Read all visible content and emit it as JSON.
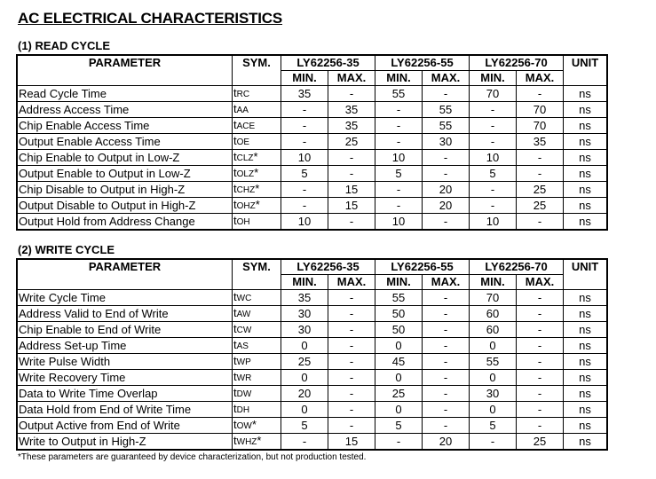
{
  "title": "AC ELECTRICAL CHARACTERISTICS",
  "headers": {
    "parameter": "PARAMETER",
    "sym": "SYM.",
    "parts": [
      "LY62256-35",
      "LY62256-55",
      "LY62256-70"
    ],
    "min": "MIN.",
    "max": "MAX.",
    "unit": "UNIT"
  },
  "read": {
    "heading": "(1) READ CYCLE",
    "rows": [
      [
        "Read Cycle Time",
        "RC",
        "",
        "35",
        "-",
        "55",
        "-",
        "70",
        "-",
        "ns"
      ],
      [
        "Address Access Time",
        "AA",
        "",
        "-",
        "35",
        "-",
        "55",
        "-",
        "70",
        "ns"
      ],
      [
        "Chip Enable Access Time",
        "ACE",
        "",
        "-",
        "35",
        "-",
        "55",
        "-",
        "70",
        "ns"
      ],
      [
        "Output Enable Access Time",
        "OE",
        "",
        "-",
        "25",
        "-",
        "30",
        "-",
        "35",
        "ns"
      ],
      [
        "Chip Enable to Output in Low-Z",
        "CLZ",
        "*",
        "10",
        "-",
        "10",
        "-",
        "10",
        "-",
        "ns"
      ],
      [
        "Output Enable to Output in Low-Z",
        "OLZ",
        "*",
        "5",
        "-",
        "5",
        "-",
        "5",
        "-",
        "ns"
      ],
      [
        "Chip Disable to Output in High-Z",
        "CHZ",
        "*",
        "-",
        "15",
        "-",
        "20",
        "-",
        "25",
        "ns"
      ],
      [
        "Output Disable to Output in High-Z",
        "OHZ",
        "*",
        "-",
        "15",
        "-",
        "20",
        "-",
        "25",
        "ns"
      ],
      [
        "Output Hold from Address Change",
        "OH",
        "",
        "10",
        "-",
        "10",
        "-",
        "10",
        "-",
        "ns"
      ]
    ]
  },
  "write": {
    "heading": "(2) WRITE CYCLE",
    "rows": [
      [
        "Write Cycle Time",
        "WC",
        "",
        "35",
        "-",
        "55",
        "-",
        "70",
        "-",
        "ns"
      ],
      [
        "Address Valid to End of Write",
        "AW",
        "",
        "30",
        "-",
        "50",
        "-",
        "60",
        "-",
        "ns"
      ],
      [
        "Chip Enable to End of Write",
        "CW",
        "",
        "30",
        "-",
        "50",
        "-",
        "60",
        "-",
        "ns"
      ],
      [
        "Address Set-up Time",
        "AS",
        "",
        "0",
        "-",
        "0",
        "-",
        "0",
        "-",
        "ns"
      ],
      [
        "Write Pulse Width",
        "WP",
        "",
        "25",
        "-",
        "45",
        "-",
        "55",
        "-",
        "ns"
      ],
      [
        "Write Recovery Time",
        "WR",
        "",
        "0",
        "-",
        "0",
        "-",
        "0",
        "-",
        "ns"
      ],
      [
        "Data to Write Time Overlap",
        "DW",
        "",
        "20",
        "-",
        "25",
        "-",
        "30",
        "-",
        "ns"
      ],
      [
        "Data Hold from End of Write Time",
        "DH",
        "",
        "0",
        "-",
        "0",
        "-",
        "0",
        "-",
        "ns"
      ],
      [
        "Output Active from End of Write",
        "OW",
        "*",
        "5",
        "-",
        "5",
        "-",
        "5",
        "-",
        "ns"
      ],
      [
        "Write to Output in High-Z",
        "WHZ",
        "*",
        "-",
        "15",
        "-",
        "20",
        "-",
        "25",
        "ns"
      ]
    ]
  },
  "footnote": "*These parameters are guaranteed by device characterization, but not production tested."
}
